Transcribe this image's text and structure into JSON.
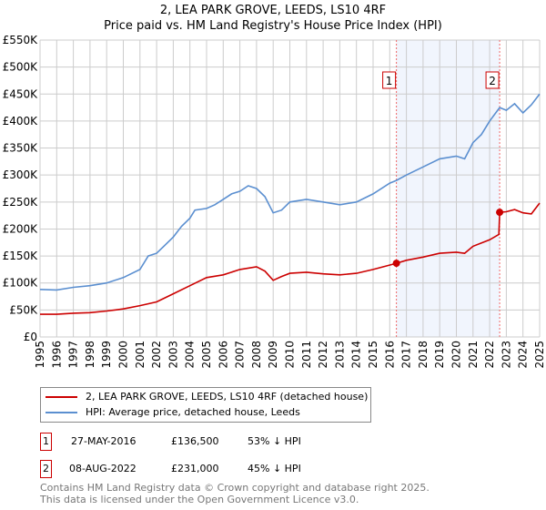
{
  "chart_data": {
    "type": "line",
    "title": "2, LEA PARK GROVE, LEEDS, LS10 4RF",
    "subtitle": "Price paid vs. HM Land Registry's House Price Index (HPI)",
    "xlim": [
      1995,
      2025
    ],
    "ylim": [
      0,
      550000
    ],
    "x_ticks": [
      "1995",
      "1996",
      "1997",
      "1998",
      "1999",
      "2000",
      "2001",
      "2002",
      "2003",
      "2004",
      "2005",
      "2006",
      "2007",
      "2008",
      "2009",
      "2010",
      "2011",
      "2012",
      "2013",
      "2014",
      "2015",
      "2016",
      "2017",
      "2018",
      "2019",
      "2020",
      "2021",
      "2022",
      "2023",
      "2024",
      "2025"
    ],
    "y_ticks": [
      {
        "v": 0,
        "l": "£0"
      },
      {
        "v": 50000,
        "l": "£50K"
      },
      {
        "v": 100000,
        "l": "£100K"
      },
      {
        "v": 150000,
        "l": "£150K"
      },
      {
        "v": 200000,
        "l": "£200K"
      },
      {
        "v": 250000,
        "l": "£250K"
      },
      {
        "v": 300000,
        "l": "£300K"
      },
      {
        "v": 350000,
        "l": "£350K"
      },
      {
        "v": 400000,
        "l": "£400K"
      },
      {
        "v": 450000,
        "l": "£450K"
      },
      {
        "v": 500000,
        "l": "£500K"
      },
      {
        "v": 550000,
        "l": "£550K"
      }
    ],
    "grid": true,
    "series": [
      {
        "name": "2, LEA PARK GROVE, LEEDS, LS10 4RF (detached house)",
        "color": "#cc0000",
        "x": [
          1995,
          1996,
          1997,
          1998,
          1999,
          2000,
          2001,
          2002,
          2003,
          2004,
          2005,
          2006,
          2007,
          2008,
          2008.5,
          2009,
          2009.5,
          2010,
          2011,
          2012,
          2013,
          2014,
          2015,
          2016.4,
          2017,
          2018,
          2019,
          2020,
          2020.5,
          2021,
          2022,
          2022.55,
          2022.6,
          2023,
          2023.5,
          2024,
          2024.5,
          2025
        ],
        "y": [
          42000,
          42000,
          44000,
          45000,
          48000,
          52000,
          58000,
          65000,
          80000,
          95000,
          110000,
          115000,
          125000,
          130000,
          122000,
          105000,
          112000,
          118000,
          120000,
          117000,
          115000,
          118000,
          125000,
          136500,
          142000,
          148000,
          155000,
          157000,
          155000,
          168000,
          180000,
          190000,
          231000,
          232000,
          236000,
          230000,
          228000,
          248000
        ]
      },
      {
        "name": "HPI: Average price, detached house, Leeds",
        "color": "#5b8fd0",
        "x": [
          1995,
          1996,
          1997,
          1998,
          1999,
          2000,
          2001,
          2001.5,
          2002,
          2002.5,
          2003,
          2003.5,
          2004,
          2004.3,
          2005,
          2005.5,
          2006,
          2006.5,
          2007,
          2007.5,
          2008,
          2008.5,
          2009,
          2009.5,
          2010,
          2011,
          2012,
          2013,
          2014,
          2015,
          2016,
          2016.4,
          2017,
          2018,
          2019,
          2020,
          2020.5,
          2021,
          2021.5,
          2022,
          2022.6,
          2023,
          2023.5,
          2024,
          2024.5,
          2025
        ],
        "y": [
          88000,
          87000,
          92000,
          95000,
          100000,
          110000,
          125000,
          150000,
          155000,
          170000,
          185000,
          205000,
          220000,
          235000,
          238000,
          245000,
          255000,
          265000,
          270000,
          280000,
          275000,
          260000,
          230000,
          235000,
          250000,
          255000,
          250000,
          245000,
          250000,
          265000,
          285000,
          290000,
          300000,
          315000,
          330000,
          335000,
          330000,
          360000,
          375000,
          400000,
          425000,
          420000,
          432000,
          415000,
          430000,
          450000
        ]
      }
    ],
    "annotations": [
      {
        "label": "1",
        "x": 2016.4,
        "y": 136500
      },
      {
        "label": "2",
        "x": 2022.6,
        "y": 231000
      }
    ],
    "shaded_range": [
      2016.4,
      2022.6
    ]
  },
  "legend": {
    "red": "2, LEA PARK GROVE, LEEDS, LS10 4RF (detached house)",
    "blue": "HPI: Average price, detached house, Leeds"
  },
  "sales": [
    {
      "n": "1",
      "date": "27-MAY-2016",
      "price": "£136,500",
      "hpi": "53% ↓ HPI"
    },
    {
      "n": "2",
      "date": "08-AUG-2022",
      "price": "£231,000",
      "hpi": "45% ↓ HPI"
    }
  ],
  "footer": {
    "l1": "Contains HM Land Registry data © Crown copyright and database right 2025.",
    "l2": "This data is licensed under the Open Government Licence v3.0."
  }
}
